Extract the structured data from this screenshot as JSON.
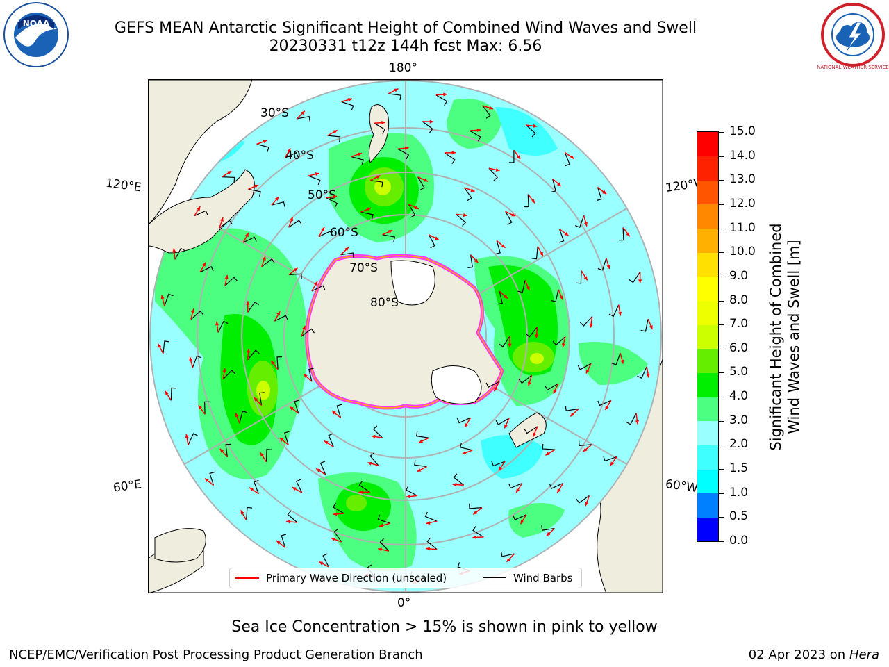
{
  "header": {
    "title_line1": "GEFS MEAN Antarctic Significant Height of Combined Wind Waves and Swell",
    "title_line2": "20230331 t12z 144h fcst   Max: 6.56"
  },
  "logos": {
    "left": "noaa-logo",
    "left_text": "NOAA",
    "right": "nws-logo",
    "right_text": "NATIONAL WEATHER SERVICE"
  },
  "map": {
    "projection": "south-polar-stereographic",
    "longitude_labels": [
      "180°",
      "120°E",
      "120°W",
      "60°E",
      "60°W",
      "0°"
    ],
    "latitude_labels": [
      "30°S",
      "40°S",
      "50°S",
      "60°S",
      "70°S",
      "80°S"
    ],
    "colors": {
      "land": "#efedde",
      "ice_cap": "#ffffff",
      "ocean_low": "#99ffff",
      "wave_arrow": "#ff0000",
      "wind_barb": "#000000",
      "grid": "#b0b0b0"
    }
  },
  "colorbar": {
    "label_line1": "Significant Height of Combined",
    "label_line2": "Wind Waves and Swell [m]",
    "levels": [
      "0.0",
      "0.5",
      "1.0",
      "1.5",
      "2.0",
      "3.0",
      "4.0",
      "5.0",
      "6.0",
      "7.0",
      "8.0",
      "9.0",
      "10.0",
      "11.0",
      "12.0",
      "13.0",
      "14.0",
      "15.0"
    ],
    "colors": [
      "#0000ff",
      "#0080ff",
      "#00ffff",
      "#40ffff",
      "#99ffff",
      "#4dff80",
      "#00ee00",
      "#66ee00",
      "#ccff00",
      "#eeff00",
      "#ffff00",
      "#ffe000",
      "#ffb000",
      "#ff8800",
      "#ff5500",
      "#ff2200",
      "#ff0000"
    ]
  },
  "legend": {
    "wave_label": "Primary Wave Direction (unscaled)",
    "wind_label": "Wind Barbs"
  },
  "notes": {
    "ice": "Sea Ice Concentration > 15% is shown in pink to yellow"
  },
  "footer": {
    "left": "NCEP/EMC/Verification Post Processing Product Generation Branch",
    "date": "02 Apr 2023 on ",
    "host": "Hera"
  }
}
